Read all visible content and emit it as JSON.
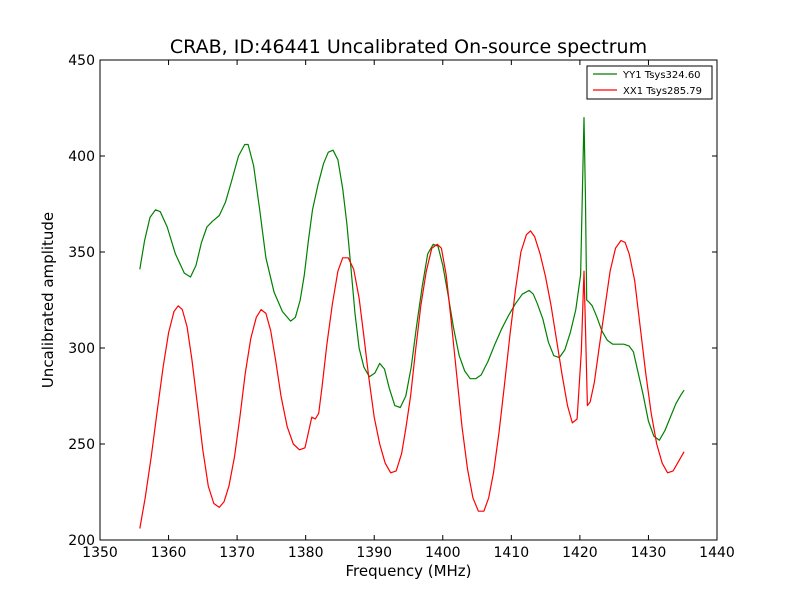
{
  "chart_data": {
    "type": "line",
    "title": "CRAB, ID:46441 Uncalibrated On-source spectrum",
    "xlabel": "Frequency (MHz)",
    "ylabel": "Uncalibrated amplitude",
    "xlim": [
      1350,
      1440
    ],
    "ylim": [
      200,
      450
    ],
    "xticks": [
      1350,
      1360,
      1370,
      1380,
      1390,
      1400,
      1410,
      1420,
      1430,
      1440
    ],
    "yticks": [
      200,
      250,
      300,
      350,
      400,
      450
    ],
    "grid": false,
    "legend_position": "top-right",
    "series": [
      {
        "name": "YY1 Tsys324.60",
        "color": "#008000",
        "x": [
          1355.8,
          1356.5,
          1357.3,
          1358.1,
          1358.8,
          1359.8,
          1361,
          1362.3,
          1363.2,
          1364,
          1364.8,
          1365.6,
          1366.4,
          1367.4,
          1368.3,
          1369.2,
          1370.2,
          1371.1,
          1371.6,
          1372.4,
          1373.3,
          1374.2,
          1375.4,
          1376.6,
          1377.8,
          1378.5,
          1379.2,
          1379.8,
          1380.4,
          1381,
          1381.8,
          1382.6,
          1383.3,
          1384,
          1384.7,
          1385.4,
          1386,
          1386.6,
          1387.2,
          1387.8,
          1388.5,
          1389.3,
          1390.1,
          1390.8,
          1391.5,
          1392.2,
          1393,
          1393.8,
          1394.6,
          1395.4,
          1396.2,
          1397,
          1397.8,
          1398.6,
          1399.3,
          1400,
          1400.8,
          1401.6,
          1402.4,
          1403.2,
          1404,
          1404.8,
          1405.6,
          1406.6,
          1407.6,
          1408.6,
          1409.6,
          1410.6,
          1411.6,
          1412.6,
          1413.2,
          1413.8,
          1414.6,
          1415.4,
          1416.2,
          1417,
          1417.8,
          1418.6,
          1419.4,
          1420.1,
          1420.6,
          1420.8,
          1421,
          1421.3,
          1421.8,
          1422.5,
          1423.2,
          1424,
          1424.8,
          1425.6,
          1426.4,
          1427.2,
          1427.8,
          1428.5,
          1429.2,
          1430,
          1430.8,
          1431.6,
          1432.4,
          1433.2,
          1434,
          1434.8,
          1435.2
        ],
        "values": [
          341,
          356,
          368,
          372,
          371,
          363,
          349,
          339,
          337,
          343,
          355,
          363,
          366,
          369,
          376,
          387,
          400,
          406,
          406,
          395,
          372,
          347,
          329,
          319,
          314,
          316,
          325,
          338,
          356,
          372,
          385,
          396,
          402,
          403,
          398,
          383,
          365,
          342,
          318,
          300,
          290,
          285,
          287,
          292,
          289,
          279,
          270,
          269,
          275,
          290,
          312,
          332,
          349,
          354,
          353,
          343,
          327,
          310,
          296,
          288,
          284,
          284,
          286,
          293,
          302,
          310,
          317,
          323,
          328,
          330,
          328,
          323,
          315,
          303,
          296,
          295,
          299,
          308,
          320,
          338,
          420,
          380,
          325,
          324,
          322,
          316,
          309,
          304,
          302,
          302,
          302,
          301,
          298,
          287,
          276,
          262,
          254,
          252,
          257,
          264,
          271,
          276,
          278
        ]
      },
      {
        "name": "XX1 Tsys285.79",
        "color": "#ff0000",
        "x": [
          1355.8,
          1356.6,
          1357.5,
          1358.3,
          1359.2,
          1360,
          1360.8,
          1361.4,
          1362,
          1362.7,
          1363.4,
          1364.2,
          1365,
          1365.8,
          1366.6,
          1367.4,
          1368.1,
          1368.8,
          1369.6,
          1370.4,
          1371.2,
          1372,
          1372.8,
          1373.5,
          1374.2,
          1374.9,
          1375.6,
          1376.4,
          1377.3,
          1378.2,
          1379.1,
          1379.9,
          1380.4,
          1380.9,
          1381.4,
          1381.9,
          1382.4,
          1383.1,
          1383.9,
          1384.7,
          1385.4,
          1386.2,
          1387,
          1387.8,
          1388.5,
          1389.2,
          1390,
          1390.8,
          1391.6,
          1392.4,
          1393.2,
          1394,
          1394.6,
          1395.3,
          1396,
          1396.8,
          1397.6,
          1398.4,
          1399.2,
          1399.8,
          1400.5,
          1401.2,
          1402,
          1402.8,
          1403.6,
          1404.4,
          1405.2,
          1406,
          1406.7,
          1407.4,
          1408.2,
          1409,
          1409.8,
          1410.6,
          1411.4,
          1412.2,
          1412.8,
          1413.4,
          1414.2,
          1415,
          1415.8,
          1416.6,
          1417.4,
          1418.2,
          1418.9,
          1419.6,
          1420.2,
          1420.6,
          1420.8,
          1421.1,
          1421.5,
          1422.1,
          1422.8,
          1423.6,
          1424.4,
          1425.2,
          1426,
          1426.6,
          1427.2,
          1428,
          1428.8,
          1429.6,
          1430.4,
          1431.2,
          1432,
          1432.8,
          1433.6,
          1434.4,
          1435.2
        ],
        "values": [
          206,
          222,
          244,
          266,
          290,
          308,
          319,
          322,
          320,
          311,
          294,
          271,
          247,
          228,
          219,
          217,
          220,
          228,
          243,
          264,
          287,
          305,
          316,
          320,
          318,
          309,
          294,
          275,
          259,
          250,
          247,
          248,
          256,
          264,
          263,
          266,
          280,
          302,
          323,
          340,
          347,
          347,
          341,
          326,
          306,
          285,
          264,
          250,
          240,
          235,
          236,
          245,
          258,
          275,
          298,
          322,
          340,
          352,
          354,
          352,
          338,
          315,
          287,
          259,
          237,
          222,
          215,
          215,
          222,
          235,
          256,
          281,
          307,
          330,
          350,
          359,
          361,
          358,
          349,
          337,
          322,
          304,
          286,
          270,
          261,
          263,
          298,
          340,
          312,
          270,
          272,
          282,
          300,
          320,
          340,
          352,
          356,
          355,
          349,
          335,
          311,
          287,
          266,
          250,
          240,
          235,
          236,
          241,
          246
        ]
      }
    ]
  }
}
